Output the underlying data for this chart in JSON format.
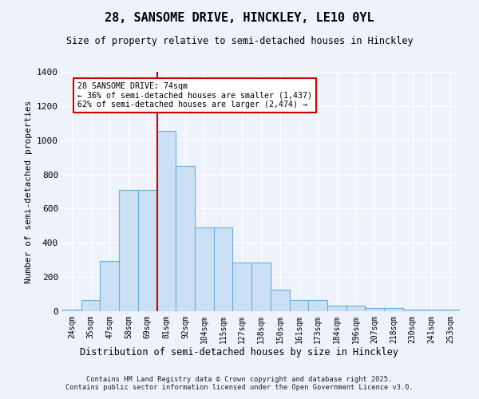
{
  "title_line1": "28, SANSOME DRIVE, HINCKLEY, LE10 0YL",
  "title_line2": "Size of property relative to semi-detached houses in Hinckley",
  "xlabel": "Distribution of semi-detached houses by size in Hinckley",
  "ylabel": "Number of semi-detached properties",
  "bin_labels": [
    "24sqm",
    "35sqm",
    "47sqm",
    "58sqm",
    "69sqm",
    "81sqm",
    "92sqm",
    "104sqm",
    "115sqm",
    "127sqm",
    "138sqm",
    "150sqm",
    "161sqm",
    "173sqm",
    "184sqm",
    "196sqm",
    "207sqm",
    "218sqm",
    "230sqm",
    "241sqm",
    "253sqm"
  ],
  "bar_values": [
    10,
    65,
    295,
    710,
    710,
    1055,
    850,
    490,
    490,
    285,
    285,
    125,
    65,
    65,
    35,
    35,
    20,
    20,
    10,
    10,
    10
  ],
  "bar_color": "#cce0f5",
  "bar_edge_color": "#6aaed6",
  "red_line_color": "#cc0000",
  "red_line_bin_index": 4,
  "annotation_title": "28 SANSOME DRIVE: 74sqm",
  "annotation_line1": "← 36% of semi-detached houses are smaller (1,437)",
  "annotation_line2": "62% of semi-detached houses are larger (2,474) →",
  "annotation_box_facecolor": "#ffffff",
  "annotation_box_edgecolor": "#cc0000",
  "ylim": [
    0,
    1400
  ],
  "yticks": [
    0,
    200,
    400,
    600,
    800,
    1000,
    1200,
    1400
  ],
  "bg_color": "#eef2fb",
  "plot_bg_color": "#eef2fb",
  "grid_color": "#ffffff",
  "footer_line1": "Contains HM Land Registry data © Crown copyright and database right 2025.",
  "footer_line2": "Contains public sector information licensed under the Open Government Licence v3.0."
}
